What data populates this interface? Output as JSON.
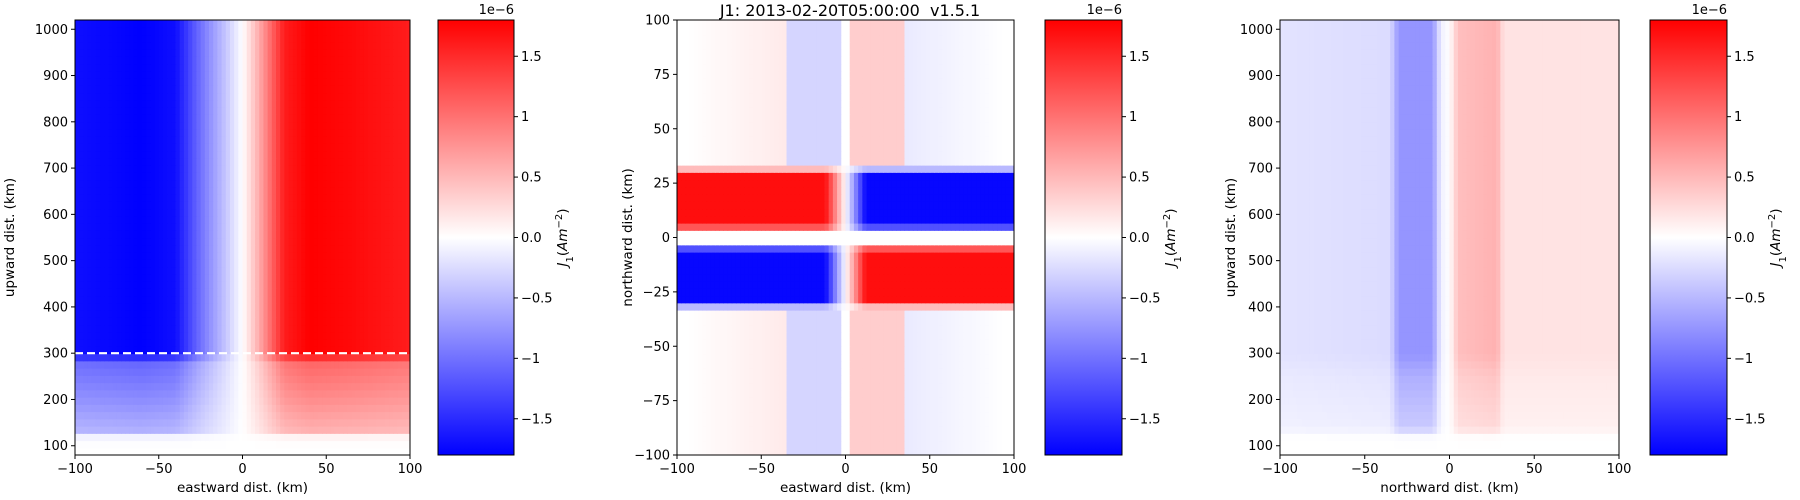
{
  "figure": {
    "suptitle": "J1: 2013-02-20T05:00:00  v1.5.1"
  },
  "chart_data": [
    {
      "type": "heatmap",
      "title": "",
      "xlabel": "eastward dist. (km)",
      "ylabel": "upward dist. (km)",
      "xlim": [
        -100,
        100
      ],
      "ylim": [
        80,
        1020
      ],
      "xticks": [
        -100,
        -50,
        0,
        50,
        100
      ],
      "yticks": [
        100,
        200,
        300,
        400,
        500,
        600,
        700,
        800,
        900,
        1000
      ],
      "colorbar": {
        "label": "J_1(Am^{-2})",
        "multiplier": "1e−6",
        "min": -1.8,
        "max": 1.8,
        "ticks": [
          -1.5,
          -1.0,
          -0.5,
          0.0,
          0.5,
          1.0,
          1.5
        ],
        "colors": [
          "#0000ff",
          "#ffffff",
          "#ff0000"
        ]
      },
      "field_description": "Negative current west of 0 km, positive east of 0 km; weaker below 300 km; near zero below ~120 km",
      "field_profile_x": [
        [
          -100,
          -1.7
        ],
        [
          -60,
          -1.8
        ],
        [
          -40,
          -1.7
        ],
        [
          -25,
          -1.0
        ],
        [
          -10,
          -0.4
        ],
        [
          0,
          0.0
        ],
        [
          10,
          0.6
        ],
        [
          25,
          1.6
        ],
        [
          40,
          1.8
        ],
        [
          60,
          1.75
        ],
        [
          100,
          1.6
        ]
      ],
      "field_profile_z": [
        [
          100,
          0.0
        ],
        [
          120,
          0.05
        ],
        [
          130,
          0.3
        ],
        [
          200,
          0.45
        ],
        [
          280,
          0.6
        ],
        [
          300,
          1.0
        ],
        [
          1020,
          1.0
        ]
      ],
      "annotation": {
        "type": "dashed-line",
        "y": 300,
        "color": "#ffffff"
      }
    },
    {
      "type": "heatmap",
      "title": "",
      "xlabel": "eastward dist. (km)",
      "ylabel": "northward dist. (km)",
      "xlim": [
        -100,
        100
      ],
      "ylim": [
        -100,
        100
      ],
      "xticks": [
        -100,
        -50,
        0,
        50,
        100
      ],
      "yticks": [
        -100,
        -75,
        -50,
        -25,
        0,
        25,
        50,
        75,
        100
      ],
      "colorbar": {
        "label": "J_1(Am^{-2})",
        "multiplier": "1e−6",
        "min": -1.8,
        "max": 1.8,
        "ticks": [
          -1.5,
          -1.0,
          -0.5,
          0.0,
          0.5,
          1.0,
          1.5
        ],
        "colors": [
          "#0000ff",
          "#ffffff",
          "#ff0000"
        ]
      },
      "field_description": "Strong bands for |north| in 3-32 km (positive NW and SE quadrants, negative NE and SW), faint opposite-signed background elsewhere",
      "band_values": {
        "north_west": 1.7,
        "north_east": -1.75,
        "south_west": -1.75,
        "south_east": 1.7
      },
      "background_values": {
        "west": 0.15,
        "east": -0.15,
        "west_near_center": -0.3,
        "east_near_center": 0.35
      }
    },
    {
      "type": "heatmap",
      "title": "",
      "xlabel": "northward dist. (km)",
      "ylabel": "upward dist. (km)",
      "xlim": [
        -100,
        100
      ],
      "ylim": [
        80,
        1020
      ],
      "xticks": [
        -100,
        -50,
        0,
        50,
        100
      ],
      "yticks": [
        100,
        200,
        300,
        400,
        500,
        600,
        700,
        800,
        900,
        1000
      ],
      "colorbar": {
        "label": "J_1(Am^{-2})",
        "multiplier": "1e−6",
        "min": -1.8,
        "max": 1.8,
        "ticks": [
          -1.5,
          -1.0,
          -0.5,
          0.0,
          0.5,
          1.0,
          1.5
        ],
        "colors": [
          "#0000ff",
          "#ffffff",
          "#ff0000"
        ]
      },
      "field_description": "Faint negative south of 0, faint positive north of 0, with stronger bands between -30..-5 km (negative) and 5..30 km (positive); near zero below ~120 km",
      "field_profile_x": [
        [
          -100,
          -0.2
        ],
        [
          -35,
          -0.25
        ],
        [
          -30,
          -0.75
        ],
        [
          -10,
          -0.75
        ],
        [
          -5,
          -0.1
        ],
        [
          0,
          0.0
        ],
        [
          5,
          0.45
        ],
        [
          28,
          0.55
        ],
        [
          32,
          0.2
        ],
        [
          100,
          0.2
        ]
      ],
      "field_profile_z": [
        [
          100,
          0.0
        ],
        [
          120,
          0.05
        ],
        [
          140,
          0.5
        ],
        [
          250,
          0.75
        ],
        [
          300,
          1.0
        ],
        [
          1020,
          1.0
        ]
      ]
    }
  ]
}
